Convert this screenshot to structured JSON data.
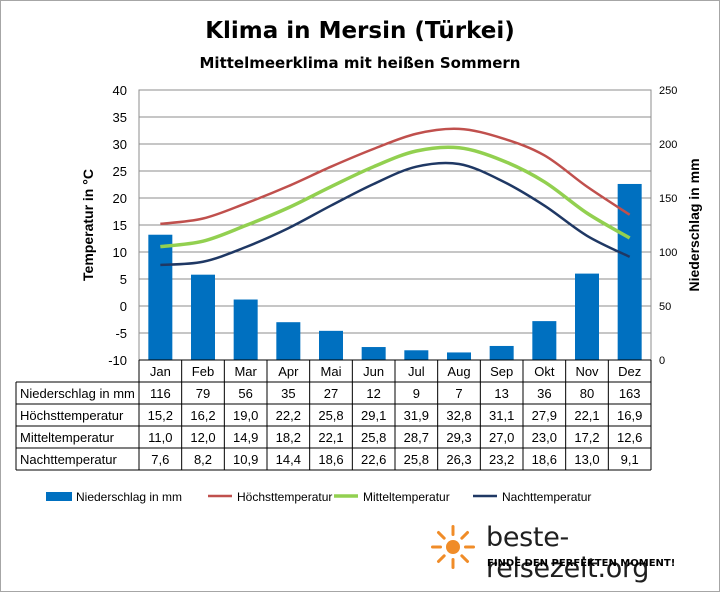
{
  "title": "Klima in Mersin (Türkei)",
  "subtitle": "Mittelmeerklima mit heißen Sommern",
  "chart_data": {
    "type": "bar+line",
    "categories": [
      "Jan",
      "Feb",
      "Mar",
      "Apr",
      "Mai",
      "Jun",
      "Jul",
      "Aug",
      "Sep",
      "Okt",
      "Nov",
      "Dez"
    ],
    "y_left": {
      "label": "Temperatur in °C",
      "min": -10,
      "max": 40,
      "step": 5,
      "ticks": [
        "40",
        "35",
        "30",
        "25",
        "20",
        "15",
        "10",
        "5",
        "0",
        "-5",
        "-10"
      ]
    },
    "y_right": {
      "label": "Niederschlag in mm",
      "min": 0,
      "max": 250,
      "step": 50,
      "ticks": [
        "250",
        "200",
        "150",
        "100",
        "50",
        "0"
      ]
    },
    "grid": true,
    "legend_position": "bottom",
    "bars": {
      "name": "Niederschlag in mm",
      "color": "#0070c0",
      "values": [
        116,
        79,
        56,
        35,
        27,
        12,
        9,
        7,
        13,
        36,
        80,
        163
      ]
    },
    "lines": [
      {
        "name": "Höchsttemperatur",
        "color": "#c0504d",
        "values": [
          15.2,
          16.2,
          19.0,
          22.2,
          25.8,
          29.1,
          31.9,
          32.8,
          31.1,
          27.9,
          22.1,
          16.9
        ]
      },
      {
        "name": "Mitteltemperatur",
        "color": "#92d050",
        "values": [
          11.0,
          12.0,
          14.9,
          18.2,
          22.1,
          25.8,
          28.7,
          29.3,
          27.0,
          23.0,
          17.2,
          12.6
        ]
      },
      {
        "name": "Nachttemperatur",
        "color": "#1f3864",
        "values": [
          7.6,
          8.2,
          10.9,
          14.4,
          18.6,
          22.6,
          25.8,
          26.3,
          23.2,
          18.6,
          13.0,
          9.1
        ]
      }
    ],
    "table_rows": [
      {
        "label": "Niederschlag in mm",
        "cells": [
          "116",
          "79",
          "56",
          "35",
          "27",
          "12",
          "9",
          "7",
          "13",
          "36",
          "80",
          "163"
        ]
      },
      {
        "label": "Höchsttemperatur",
        "cells": [
          "15,2",
          "16,2",
          "19,0",
          "22,2",
          "25,8",
          "29,1",
          "31,9",
          "32,8",
          "31,1",
          "27,9",
          "22,1",
          "16,9"
        ]
      },
      {
        "label": "Mitteltemperatur",
        "cells": [
          "11,0",
          "12,0",
          "14,9",
          "18,2",
          "22,1",
          "25,8",
          "28,7",
          "29,3",
          "27,0",
          "23,0",
          "17,2",
          "12,6"
        ]
      },
      {
        "label": "Nachttemperatur",
        "cells": [
          "7,6",
          "8,2",
          "10,9",
          "14,4",
          "18,6",
          "22,6",
          "25,8",
          "26,3",
          "23,2",
          "18,6",
          "13,0",
          "9,1"
        ]
      }
    ]
  },
  "brand": {
    "name": "beste-reisezeit.org",
    "tagline": "FINDE DEN PERFEKTEN MOMENT!",
    "logo_icon": "sun-icon",
    "logo_color": "#f08c28"
  }
}
